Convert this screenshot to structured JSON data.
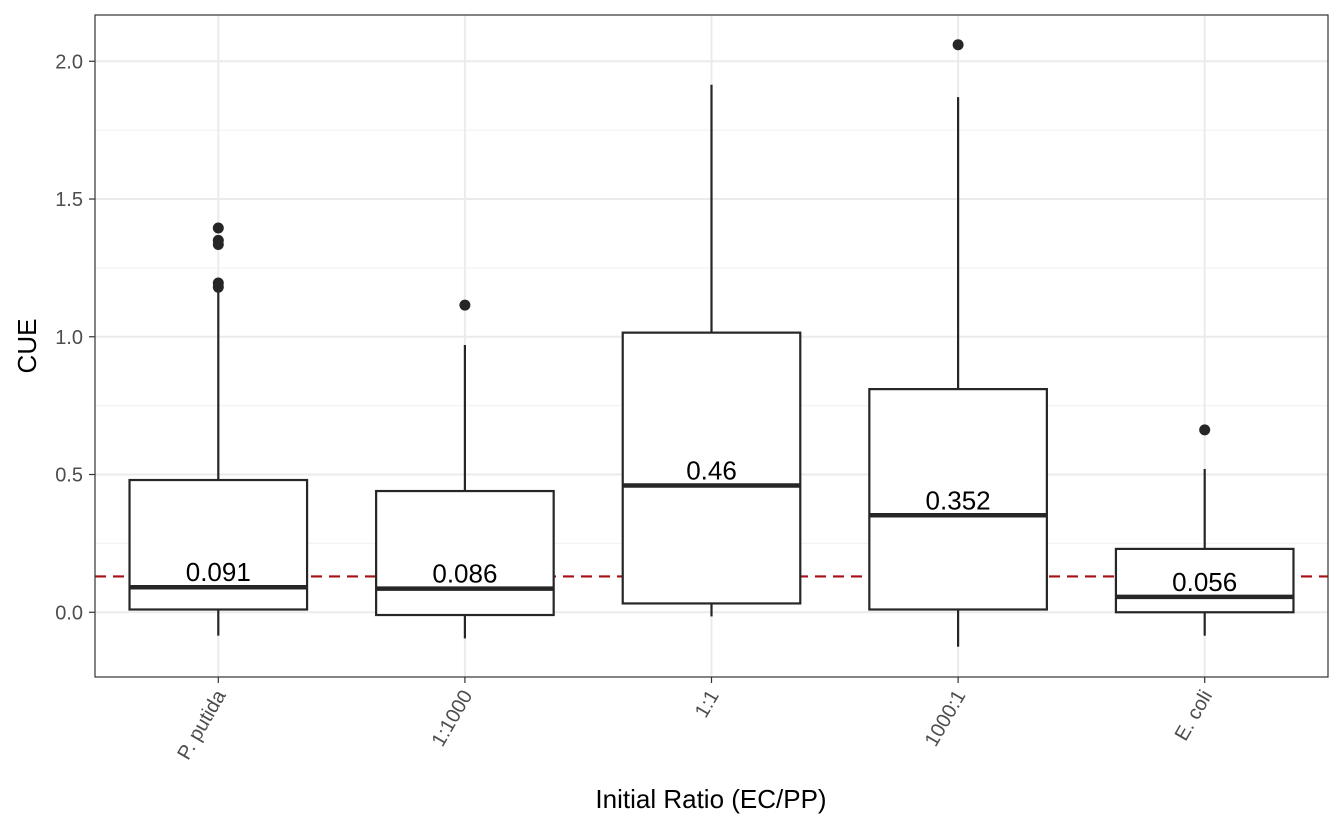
{
  "chart_data": {
    "type": "box",
    "xlabel": "Initial Ratio (EC/PP)",
    "ylabel": "CUE",
    "ylim": [
      -0.235,
      2.168
    ],
    "yticks": [
      0.0,
      0.5,
      1.0,
      1.5,
      2.0
    ],
    "ytick_labels": [
      "0.0",
      "0.5",
      "1.0",
      "1.5",
      "2.0"
    ],
    "grid": true,
    "reference_line": {
      "y": 0.13,
      "style": "dashed",
      "color": "#a50f15"
    },
    "categories": [
      "P. putida",
      "1:1000",
      "1:1",
      "1000:1",
      "E. coli"
    ],
    "boxes": [
      {
        "category": "P. putida",
        "whisker_low": -0.085,
        "q1": 0.01,
        "median": 0.091,
        "q3": 0.48,
        "whisker_high": 1.17,
        "outliers": [
          1.395,
          1.35,
          1.335,
          1.195,
          1.18
        ],
        "median_label": "0.091"
      },
      {
        "category": "1:1000",
        "whisker_low": -0.095,
        "q1": -0.01,
        "median": 0.086,
        "q3": 0.44,
        "whisker_high": 0.97,
        "outliers": [
          1.115
        ],
        "median_label": "0.086"
      },
      {
        "category": "1:1",
        "whisker_low": -0.015,
        "q1": 0.032,
        "median": 0.46,
        "q3": 1.015,
        "whisker_high": 1.915,
        "outliers": [],
        "median_label": "0.46"
      },
      {
        "category": "1000:1",
        "whisker_low": -0.125,
        "q1": 0.01,
        "median": 0.352,
        "q3": 0.81,
        "whisker_high": 1.87,
        "outliers": [
          2.06
        ],
        "median_label": "0.352"
      },
      {
        "category": "E. coli",
        "whisker_low": -0.085,
        "q1": 0.0,
        "median": 0.056,
        "q3": 0.23,
        "whisker_high": 0.52,
        "outliers": [
          0.662
        ],
        "median_label": "0.056"
      }
    ],
    "colors": {
      "box_stroke": "#262626",
      "grid_major": "#ebebeb",
      "grid_minor": "#f3f3f3",
      "panel_border": "#333333"
    }
  }
}
